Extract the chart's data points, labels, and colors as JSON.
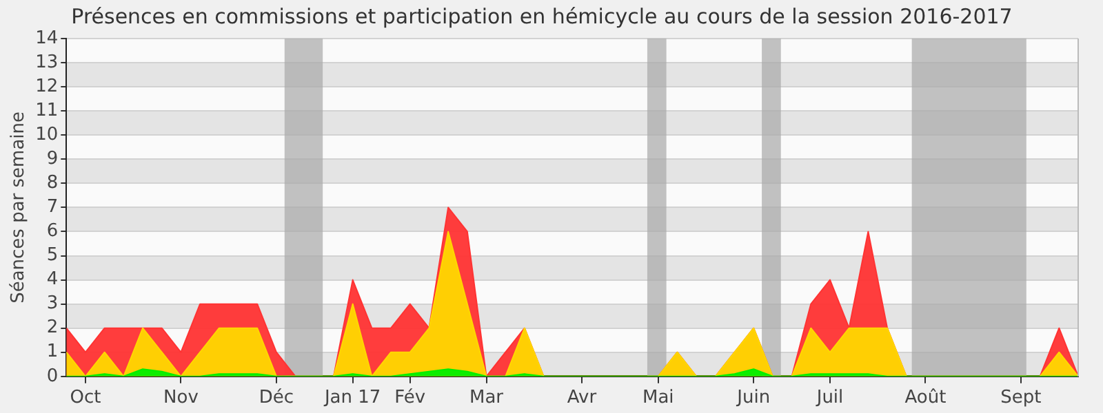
{
  "chart_data": {
    "type": "area",
    "title": "Présences en commissions et participation en hémicycle au cours de la session 2016-2017",
    "ylabel": "Séances par semaine",
    "x": [
      "2016-09-28",
      "2016-10-05",
      "2016-10-12",
      "2016-10-19",
      "2016-10-26",
      "2016-11-02",
      "2016-11-09",
      "2016-11-16",
      "2016-11-23",
      "2016-11-30",
      "2016-12-07",
      "2016-12-14",
      "2016-12-21",
      "2016-12-28",
      "2017-01-04",
      "2017-01-11",
      "2017-01-18",
      "2017-01-25",
      "2017-02-01",
      "2017-02-08",
      "2017-02-15",
      "2017-02-22",
      "2017-03-01",
      "2017-03-08",
      "2017-03-15",
      "2017-03-22",
      "2017-03-29",
      "2017-04-05",
      "2017-04-12",
      "2017-04-19",
      "2017-04-26",
      "2017-05-03",
      "2017-05-10",
      "2017-05-17",
      "2017-05-24",
      "2017-05-31",
      "2017-06-07",
      "2017-06-14",
      "2017-06-21",
      "2017-06-28",
      "2017-07-05",
      "2017-07-12",
      "2017-07-19",
      "2017-07-26",
      "2017-08-02",
      "2017-08-09",
      "2017-08-16",
      "2017-08-23",
      "2017-08-30",
      "2017-09-06",
      "2017-09-13",
      "2017-09-20",
      "2017-09-27",
      "2017-10-04"
    ],
    "series": [
      {
        "color": "#ff3333",
        "values": [
          2,
          1,
          2,
          2,
          2,
          2,
          1,
          3,
          3,
          3,
          3,
          1,
          0,
          0,
          0,
          4,
          2,
          2,
          3,
          2,
          7,
          6,
          0,
          1,
          2,
          0,
          0,
          0,
          0,
          0,
          0,
          0,
          1,
          0,
          0,
          1,
          2,
          0,
          0,
          3,
          4,
          2,
          6,
          2,
          0,
          0,
          0,
          0,
          0,
          0,
          0,
          0,
          2,
          0
        ]
      },
      {
        "color": "#ffd700",
        "values": [
          1,
          0,
          1,
          0,
          2,
          1,
          0,
          1,
          2,
          2,
          2,
          0,
          0,
          0,
          0,
          3,
          0,
          1,
          1,
          2,
          6,
          3,
          0,
          0,
          2,
          0,
          0,
          0,
          0,
          0,
          0,
          0,
          1,
          0,
          0,
          1,
          2,
          0,
          0,
          2,
          1,
          2,
          2,
          2,
          0,
          0,
          0,
          0,
          0,
          0,
          0,
          0,
          1,
          0
        ]
      },
      {
        "color": "#00ee00",
        "values": [
          0,
          0,
          0.1,
          0,
          0.3,
          0.2,
          0,
          0,
          0.1,
          0.1,
          0.1,
          0,
          0,
          0,
          0,
          0.1,
          0,
          0,
          0.1,
          0.2,
          0.3,
          0.2,
          0,
          0,
          0.1,
          0,
          0,
          0,
          0,
          0,
          0,
          0,
          0,
          0,
          0,
          0.1,
          0.3,
          0,
          0,
          0.1,
          0.1,
          0.1,
          0.1,
          0,
          0,
          0,
          0,
          0,
          0,
          0,
          0,
          0,
          0,
          0
        ]
      }
    ],
    "xlim": [
      "2016-09-28",
      "2017-10-04"
    ],
    "xticks": [
      {
        "value": "2016-10-05",
        "label": "Oct"
      },
      {
        "value": "2016-11-09",
        "label": "Nov"
      },
      {
        "value": "2016-12-14",
        "label": "Déc"
      },
      {
        "value": "2017-01-11",
        "label": "Jan 17"
      },
      {
        "value": "2017-02-01",
        "label": "Fév"
      },
      {
        "value": "2017-03-01",
        "label": "Mar"
      },
      {
        "value": "2017-04-05",
        "label": "Avr"
      },
      {
        "value": "2017-05-03",
        "label": "Mai"
      },
      {
        "value": "2017-06-07",
        "label": "Juin"
      },
      {
        "value": "2017-07-05",
        "label": "Juil"
      },
      {
        "value": "2017-08-09",
        "label": "Août"
      },
      {
        "value": "2017-09-13",
        "label": "Sept"
      }
    ],
    "ylim": [
      0,
      14
    ],
    "yticks": [
      0,
      1,
      2,
      3,
      4,
      5,
      6,
      7,
      8,
      9,
      10,
      11,
      12,
      13,
      14
    ],
    "bands": [
      {
        "axis": "x",
        "from": "2016-12-17",
        "to": "2016-12-31",
        "color": "#a8a8a8"
      },
      {
        "axis": "x",
        "from": "2017-04-29",
        "to": "2017-05-06",
        "color": "#a8a8a8"
      },
      {
        "axis": "x",
        "from": "2017-06-10",
        "to": "2017-06-17",
        "color": "#a8a8a8"
      },
      {
        "axis": "x",
        "from": "2017-08-04",
        "to": "2017-09-15",
        "color": "#a8a8a8"
      }
    ],
    "grid": "y",
    "legend": false,
    "marker": "none"
  }
}
